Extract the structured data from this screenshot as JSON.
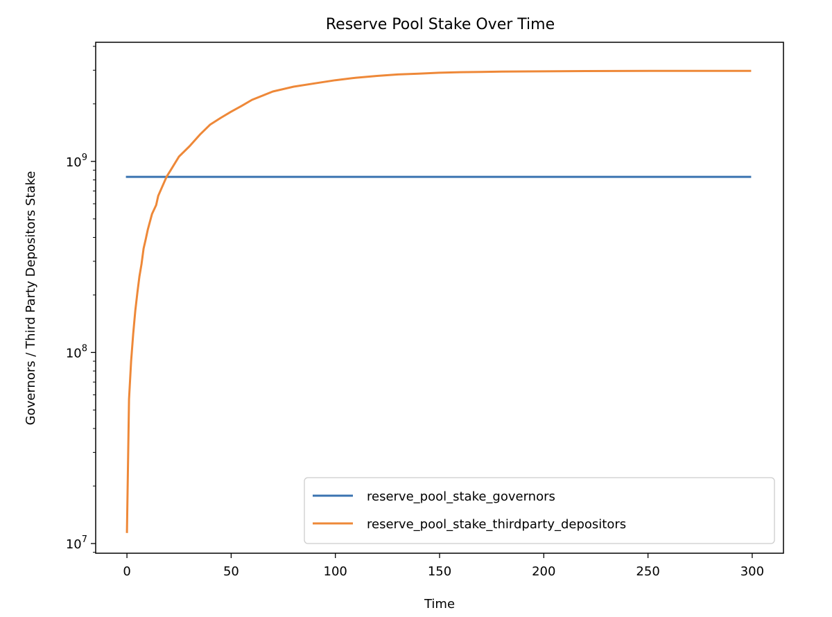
{
  "chart_data": {
    "type": "line",
    "title": "Reserve Pool Stake Over Time",
    "xlabel": "Time",
    "ylabel": "Governors / Third Party Depositors Stake",
    "xlim": [
      -15,
      315
    ],
    "ylim": [
      8900000.0,
      4200000000.0
    ],
    "yscale": "log",
    "grid": false,
    "legend_position": "lower right",
    "x_ticks": [
      {
        "value": 0,
        "label": "0"
      },
      {
        "value": 50,
        "label": "50"
      },
      {
        "value": 100,
        "label": "100"
      },
      {
        "value": 150,
        "label": "150"
      },
      {
        "value": 200,
        "label": "200"
      },
      {
        "value": 250,
        "label": "250"
      },
      {
        "value": 300,
        "label": "300"
      }
    ],
    "y_ticks": [
      {
        "value": 10000000,
        "base": "10",
        "exp": "7"
      },
      {
        "value": 100000000,
        "base": "10",
        "exp": "8"
      },
      {
        "value": 1000000000,
        "base": "10",
        "exp": "9"
      }
    ],
    "series": [
      {
        "name": "reserve_pool_stake_governors",
        "color": "#3a73b0",
        "x": [
          0,
          299
        ],
        "y": [
          830000000,
          830000000
        ]
      },
      {
        "name": "reserve_pool_stake_thirdparty_depositors",
        "color": "#ee8838",
        "x": [
          0,
          1,
          2,
          3,
          4,
          5,
          6,
          7,
          8,
          9,
          10,
          12,
          14,
          15,
          17,
          19,
          21,
          25,
          30,
          35,
          40,
          45,
          50,
          55,
          60,
          70,
          80,
          90,
          100,
          110,
          120,
          130,
          140,
          150,
          160,
          170,
          180,
          200,
          220,
          250,
          280,
          299
        ],
        "y": [
          11500000,
          57000000,
          90000000,
          125000000,
          165000000,
          205000000,
          250000000,
          290000000,
          350000000,
          390000000,
          440000000,
          530000000,
          590000000,
          660000000,
          740000000,
          830000000,
          900000000,
          1060000000,
          1200000000,
          1380000000,
          1560000000,
          1690000000,
          1820000000,
          1950000000,
          2100000000,
          2320000000,
          2460000000,
          2560000000,
          2660000000,
          2740000000,
          2800000000,
          2850000000,
          2880000000,
          2910000000,
          2930000000,
          2940000000,
          2950000000,
          2960000000,
          2970000000,
          2975000000,
          2975000000,
          2975000000
        ]
      }
    ]
  }
}
